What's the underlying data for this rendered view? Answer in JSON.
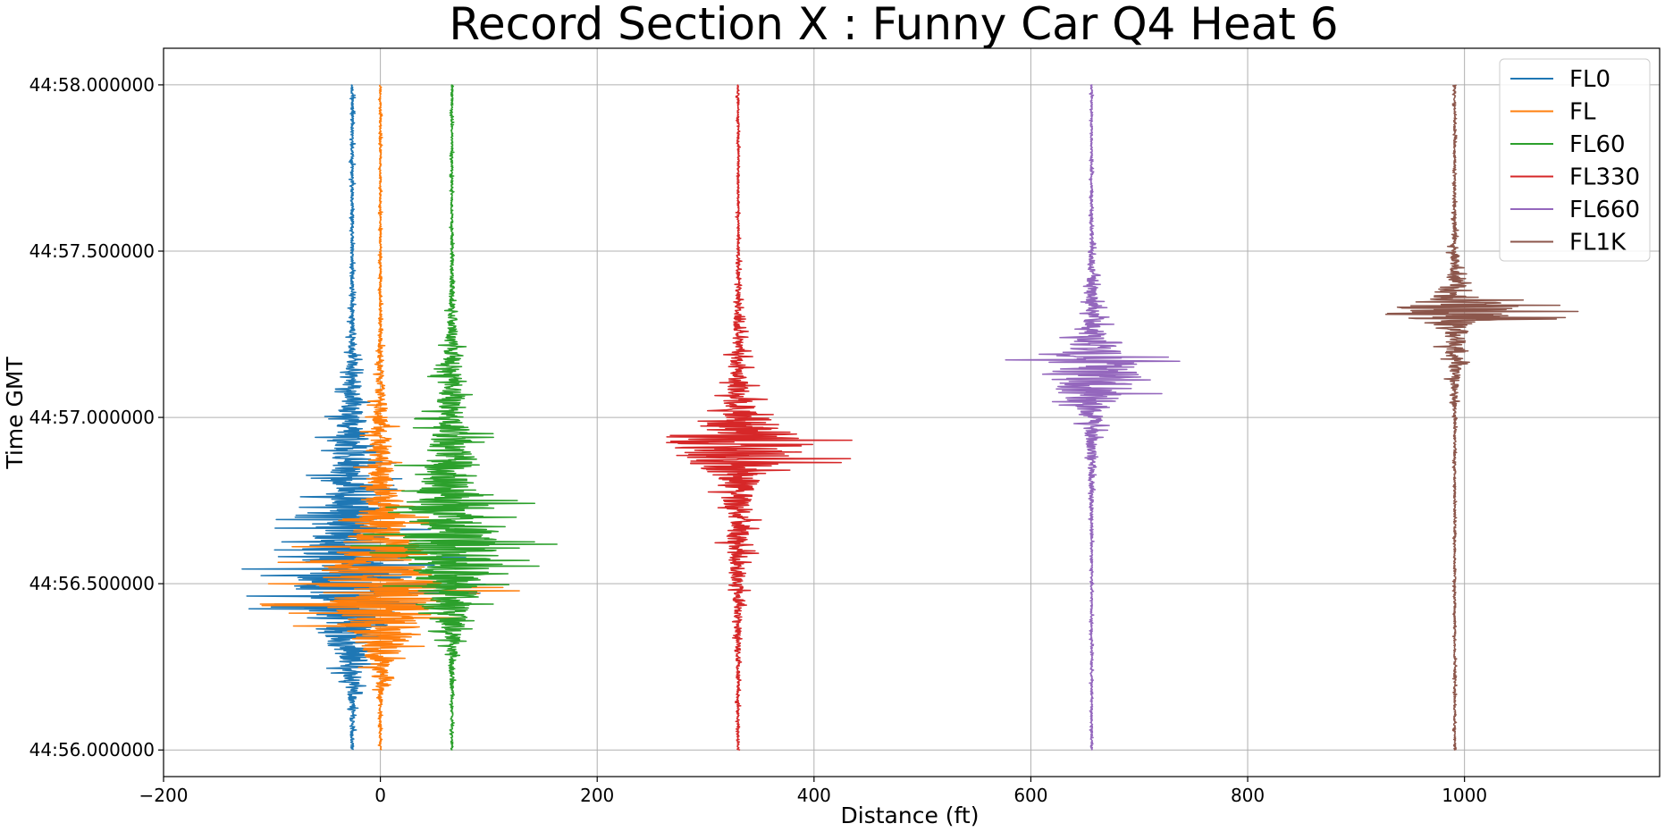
{
  "chart_data": {
    "type": "line",
    "title": "Record Section X : Funny Car Q4 Heat 6",
    "xlabel": "Distance (ft)",
    "ylabel": "Time GMT",
    "xlim": [
      -200,
      1180
    ],
    "ylim": [
      44.56,
      44.58
    ],
    "y_time_prefix": "44:",
    "x_ticks": [
      {
        "value": -200,
        "label": "−200"
      },
      {
        "value": 0,
        "label": "0"
      },
      {
        "value": 200,
        "label": "200"
      },
      {
        "value": 400,
        "label": "400"
      },
      {
        "value": 600,
        "label": "600"
      },
      {
        "value": 800,
        "label": "800"
      },
      {
        "value": 1000,
        "label": "1000"
      }
    ],
    "y_ticks": [
      {
        "value": 56.0,
        "label": "44:56.000000"
      },
      {
        "value": 56.5,
        "label": "44:56.500000"
      },
      {
        "value": 57.0,
        "label": "44:57.000000"
      },
      {
        "value": 57.5,
        "label": "44:57.500000"
      },
      {
        "value": 58.0,
        "label": "44:58.000000"
      }
    ],
    "y_range_seconds": [
      55.92,
      58.11
    ],
    "grid": true,
    "legend_position": "top-right",
    "series": [
      {
        "name": "FL0",
        "color": "#1f77b4",
        "offset": -26,
        "noise": 3,
        "bursts": [
          {
            "center": 56.5,
            "sigma": 0.14,
            "amp": 115
          },
          {
            "center": 56.85,
            "sigma": 0.18,
            "amp": 35
          }
        ]
      },
      {
        "name": "FL",
        "color": "#ff7f0e",
        "offset": 0,
        "noise": 2,
        "bursts": [
          {
            "center": 56.48,
            "sigma": 0.12,
            "amp": 120
          },
          {
            "center": 56.78,
            "sigma": 0.2,
            "amp": 25
          }
        ]
      },
      {
        "name": "FL60",
        "color": "#2ca02c",
        "offset": 66,
        "noise": 2,
        "bursts": [
          {
            "center": 56.62,
            "sigma": 0.15,
            "amp": 90
          },
          {
            "center": 56.95,
            "sigma": 0.2,
            "amp": 30
          }
        ]
      },
      {
        "name": "FL330",
        "color": "#d62728",
        "offset": 330,
        "noise": 2,
        "bursts": [
          {
            "center": 56.92,
            "sigma": 0.05,
            "amp": 130
          },
          {
            "center": 56.85,
            "sigma": 0.25,
            "amp": 30
          }
        ]
      },
      {
        "name": "FL660",
        "color": "#9467bd",
        "offset": 656,
        "noise": 2,
        "bursts": [
          {
            "center": 57.13,
            "sigma": 0.06,
            "amp": 80
          },
          {
            "center": 57.15,
            "sigma": 0.18,
            "amp": 20
          }
        ]
      },
      {
        "name": "FL1K",
        "color": "#8c564b",
        "offset": 991,
        "noise": 2,
        "bursts": [
          {
            "center": 57.32,
            "sigma": 0.025,
            "amp": 125
          },
          {
            "center": 57.3,
            "sigma": 0.12,
            "amp": 25
          }
        ]
      }
    ]
  }
}
